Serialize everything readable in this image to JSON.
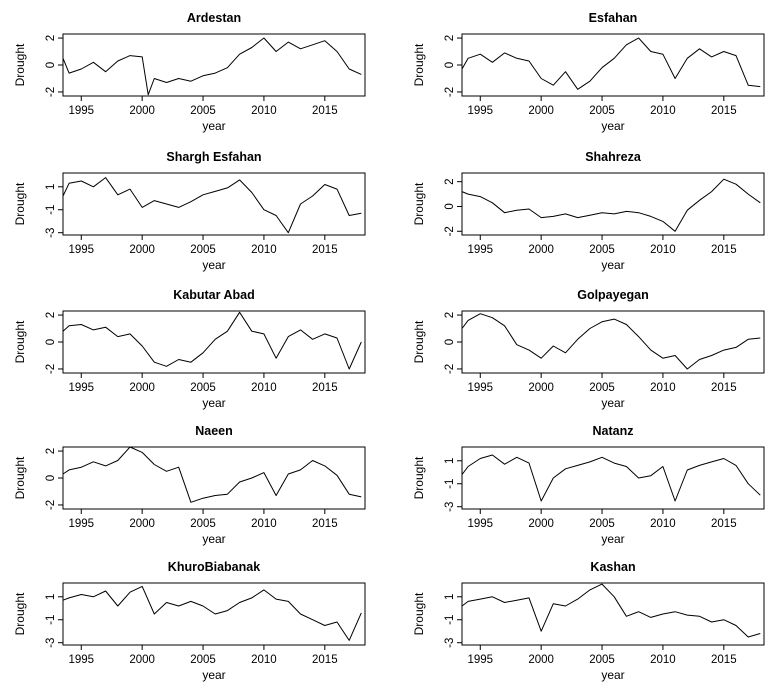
{
  "chart_data": [
    {
      "type": "line",
      "title": "Ardestan",
      "xlabel": "year",
      "ylabel": "Drought",
      "xlim": [
        1993.5,
        2018.3
      ],
      "ylim": [
        -2.3,
        2.3
      ],
      "xticks": [
        1995,
        2000,
        2005,
        2010,
        2015
      ],
      "yticks": [
        2,
        0,
        -2
      ],
      "series": [
        {
          "x": [
            1993.5,
            1994,
            1995,
            1996,
            1997,
            1998,
            1999,
            2000,
            2000.5,
            2001,
            2002,
            2003,
            2004,
            2005,
            2006,
            2007,
            2008,
            2009,
            2010,
            2011,
            2012,
            2013,
            2014,
            2015,
            2016,
            2017,
            2018
          ],
          "values": [
            0.5,
            -0.6,
            -0.3,
            0.2,
            -0.5,
            0.3,
            0.7,
            0.6,
            -2.2,
            -1.0,
            -1.3,
            -1.0,
            -1.2,
            -0.8,
            -0.6,
            -0.2,
            0.8,
            1.3,
            2.0,
            1.0,
            1.7,
            1.2,
            1.5,
            1.8,
            1.0,
            -0.3,
            -0.7
          ]
        }
      ]
    },
    {
      "type": "line",
      "title": "Esfahan",
      "xlabel": "year",
      "ylabel": "Drought",
      "xlim": [
        1993.5,
        2018.3
      ],
      "ylim": [
        -2.3,
        2.3
      ],
      "xticks": [
        1995,
        2000,
        2005,
        2010,
        2015
      ],
      "yticks": [
        2,
        0,
        -2
      ],
      "series": [
        {
          "x": [
            1993.5,
            1994,
            1995,
            1996,
            1997,
            1998,
            1999,
            2000,
            2001,
            2002,
            2003,
            2004,
            2005,
            2006,
            2007,
            2008,
            2009,
            2010,
            2011,
            2012,
            2013,
            2014,
            2015,
            2016,
            2017,
            2018
          ],
          "values": [
            -0.3,
            0.5,
            0.8,
            0.2,
            0.9,
            0.5,
            0.3,
            -1.0,
            -1.5,
            -0.5,
            -1.8,
            -1.2,
            -0.2,
            0.5,
            1.5,
            2.0,
            1.0,
            0.8,
            -1.0,
            0.5,
            1.2,
            0.6,
            1.0,
            0.7,
            -1.5,
            -1.6
          ]
        }
      ]
    },
    {
      "type": "line",
      "title": "Shargh Esfahan",
      "xlabel": "year",
      "ylabel": "Drought",
      "xlim": [
        1993.5,
        2018.3
      ],
      "ylim": [
        -3.2,
        2.2
      ],
      "xticks": [
        1995,
        2000,
        2005,
        2010,
        2015
      ],
      "yticks": [
        1,
        -1,
        -3
      ],
      "series": [
        {
          "x": [
            1993.5,
            1994,
            1995,
            1996,
            1997,
            1998,
            1999,
            2000,
            2001,
            2002,
            2003,
            2004,
            2005,
            2006,
            2007,
            2008,
            2009,
            2010,
            2011,
            2012,
            2013,
            2014,
            2015,
            2016,
            2017,
            2018
          ],
          "values": [
            0.2,
            1.3,
            1.5,
            1.0,
            1.8,
            0.3,
            0.8,
            -0.8,
            -0.2,
            -0.5,
            -0.8,
            -0.3,
            0.3,
            0.6,
            0.9,
            1.6,
            0.5,
            -1.0,
            -1.5,
            -3.0,
            -0.5,
            0.2,
            1.2,
            0.8,
            -1.5,
            -1.3
          ]
        }
      ]
    },
    {
      "type": "line",
      "title": "Shahreza",
      "xlabel": "year",
      "ylabel": "Drought",
      "xlim": [
        1993.5,
        2018.3
      ],
      "ylim": [
        -2.3,
        2.7
      ],
      "xticks": [
        1995,
        2000,
        2005,
        2010,
        2015
      ],
      "yticks": [
        2,
        0,
        -2
      ],
      "series": [
        {
          "x": [
            1993.5,
            1994,
            1995,
            1996,
            1997,
            1998,
            1999,
            2000,
            2001,
            2002,
            2003,
            2004,
            2005,
            2006,
            2007,
            2008,
            2009,
            2010,
            2011,
            2012,
            2013,
            2014,
            2015,
            2016,
            2017,
            2018
          ],
          "values": [
            1.2,
            1.0,
            0.8,
            0.3,
            -0.5,
            -0.3,
            -0.2,
            -0.9,
            -0.8,
            -0.6,
            -0.9,
            -0.7,
            -0.5,
            -0.6,
            -0.4,
            -0.5,
            -0.8,
            -1.2,
            -2.0,
            -0.3,
            0.5,
            1.2,
            2.2,
            1.8,
            1.0,
            0.3
          ]
        }
      ]
    },
    {
      "type": "line",
      "title": "Kabutar Abad",
      "xlabel": "year",
      "ylabel": "Drought",
      "xlim": [
        1993.5,
        2018.3
      ],
      "ylim": [
        -2.3,
        2.3
      ],
      "xticks": [
        1995,
        2000,
        2005,
        2010,
        2015
      ],
      "yticks": [
        2,
        0,
        -2
      ],
      "series": [
        {
          "x": [
            1993.5,
            1994,
            1995,
            1996,
            1997,
            1998,
            1999,
            2000,
            2001,
            2002,
            2003,
            2004,
            2005,
            2006,
            2007,
            2008,
            2009,
            2010,
            2011,
            2012,
            2013,
            2014,
            2015,
            2016,
            2017,
            2018
          ],
          "values": [
            0.8,
            1.2,
            1.3,
            0.9,
            1.1,
            0.4,
            0.6,
            -0.3,
            -1.5,
            -1.8,
            -1.3,
            -1.5,
            -0.8,
            0.2,
            0.8,
            2.2,
            0.8,
            0.6,
            -1.2,
            0.4,
            0.9,
            0.2,
            0.6,
            0.3,
            -2.0,
            0.0
          ]
        }
      ]
    },
    {
      "type": "line",
      "title": "Golpayegan",
      "xlabel": "year",
      "ylabel": "Drought",
      "xlim": [
        1993.5,
        2018.3
      ],
      "ylim": [
        -2.3,
        2.3
      ],
      "xticks": [
        1995,
        2000,
        2005,
        2010,
        2015
      ],
      "yticks": [
        2,
        0,
        -2
      ],
      "series": [
        {
          "x": [
            1993.5,
            1994,
            1995,
            1996,
            1997,
            1998,
            1999,
            2000,
            2001,
            2002,
            2003,
            2004,
            2005,
            2006,
            2007,
            2008,
            2009,
            2010,
            2011,
            2012,
            2013,
            2014,
            2015,
            2016,
            2017,
            2018
          ],
          "values": [
            1.0,
            1.6,
            2.1,
            1.8,
            1.2,
            -0.2,
            -0.6,
            -1.2,
            -0.3,
            -0.8,
            0.2,
            1.0,
            1.5,
            1.7,
            1.3,
            0.4,
            -0.6,
            -1.2,
            -1.0,
            -2.0,
            -1.3,
            -1.0,
            -0.6,
            -0.4,
            0.2,
            0.3
          ]
        }
      ]
    },
    {
      "type": "line",
      "title": "Naeen",
      "xlabel": "year",
      "ylabel": "Drought",
      "xlim": [
        1993.5,
        2018.3
      ],
      "ylim": [
        -2.3,
        2.3
      ],
      "xticks": [
        1995,
        2000,
        2005,
        2010,
        2015
      ],
      "yticks": [
        2,
        0,
        -2
      ],
      "series": [
        {
          "x": [
            1993.5,
            1994,
            1995,
            1996,
            1997,
            1998,
            1999,
            2000,
            2001,
            2002,
            2003,
            2004,
            2005,
            2006,
            2007,
            2008,
            2009,
            2010,
            2011,
            2012,
            2013,
            2014,
            2015,
            2016,
            2017,
            2018
          ],
          "values": [
            0.3,
            0.6,
            0.8,
            1.2,
            0.9,
            1.3,
            2.3,
            1.9,
            1.0,
            0.5,
            0.8,
            -1.8,
            -1.5,
            -1.3,
            -1.2,
            -0.3,
            0.0,
            0.4,
            -1.3,
            0.3,
            0.6,
            1.3,
            0.9,
            0.2,
            -1.2,
            -1.4
          ]
        }
      ]
    },
    {
      "type": "line",
      "title": "Natanz",
      "xlabel": "year",
      "ylabel": "Drought",
      "xlim": [
        1993.5,
        2018.3
      ],
      "ylim": [
        -3.2,
        2.2
      ],
      "xticks": [
        1995,
        2000,
        2005,
        2010,
        2015
      ],
      "yticks": [
        1,
        -1,
        -3
      ],
      "series": [
        {
          "x": [
            1993.5,
            1994,
            1995,
            1996,
            1997,
            1998,
            1999,
            2000,
            2001,
            2002,
            2003,
            2004,
            2005,
            2006,
            2007,
            2008,
            2009,
            2010,
            2011,
            2012,
            2013,
            2014,
            2015,
            2016,
            2017,
            2018
          ],
          "values": [
            -0.2,
            0.5,
            1.2,
            1.5,
            0.7,
            1.3,
            0.8,
            -2.5,
            -0.5,
            0.3,
            0.6,
            0.9,
            1.3,
            0.8,
            0.5,
            -0.5,
            -0.3,
            0.5,
            -2.5,
            0.2,
            0.6,
            0.9,
            1.2,
            0.6,
            -1.0,
            -2.0
          ]
        }
      ]
    },
    {
      "type": "line",
      "title": "KhuroBiabanak",
      "xlabel": "year",
      "ylabel": "Drought",
      "xlim": [
        1993.5,
        2018.3
      ],
      "ylim": [
        -3.2,
        2.2
      ],
      "xticks": [
        1995,
        2000,
        2005,
        2010,
        2015
      ],
      "yticks": [
        1,
        -1,
        -3
      ],
      "series": [
        {
          "x": [
            1993.5,
            1994,
            1995,
            1996,
            1997,
            1998,
            1999,
            2000,
            2001,
            2002,
            2003,
            2004,
            2005,
            2006,
            2007,
            2008,
            2009,
            2010,
            2011,
            2012,
            2013,
            2014,
            2015,
            2016,
            2017,
            2018
          ],
          "values": [
            0.7,
            0.9,
            1.2,
            1.0,
            1.5,
            0.2,
            1.4,
            1.9,
            -0.5,
            0.5,
            0.2,
            0.6,
            0.2,
            -0.5,
            -0.2,
            0.5,
            0.9,
            1.6,
            0.8,
            0.6,
            -0.5,
            -1.0,
            -1.5,
            -1.2,
            -2.8,
            -0.4
          ]
        }
      ]
    },
    {
      "type": "line",
      "title": "Kashan",
      "xlabel": "year",
      "ylabel": "Drought",
      "xlim": [
        1993.5,
        2018.3
      ],
      "ylim": [
        -3.2,
        2.2
      ],
      "xticks": [
        1995,
        2000,
        2005,
        2010,
        2015
      ],
      "yticks": [
        1,
        -1,
        -3
      ],
      "series": [
        {
          "x": [
            1993.5,
            1994,
            1995,
            1996,
            1997,
            1998,
            1999,
            2000,
            2001,
            2002,
            2003,
            2004,
            2005,
            2006,
            2007,
            2008,
            2009,
            2010,
            2011,
            2012,
            2013,
            2014,
            2015,
            2016,
            2017,
            2018
          ],
          "values": [
            0.2,
            0.6,
            0.8,
            1.0,
            0.5,
            0.7,
            0.9,
            -2.0,
            0.4,
            0.2,
            0.8,
            1.6,
            2.1,
            1.0,
            -0.7,
            -0.3,
            -0.8,
            -0.5,
            -0.3,
            -0.6,
            -0.7,
            -1.2,
            -1.0,
            -1.5,
            -2.5,
            -2.2
          ]
        }
      ]
    }
  ]
}
